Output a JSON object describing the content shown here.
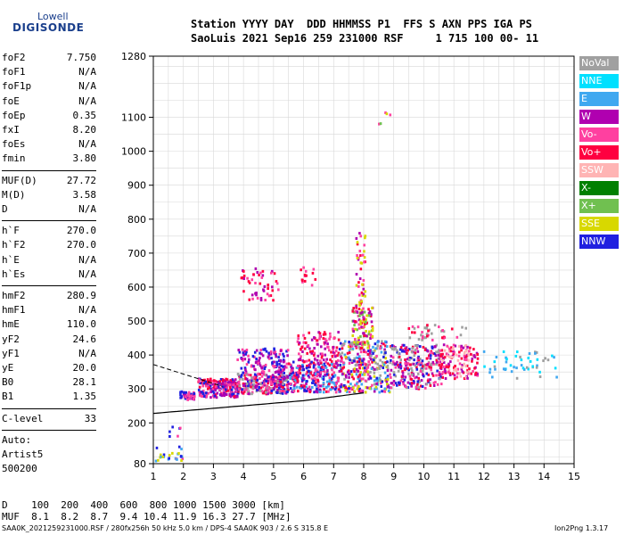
{
  "logo": {
    "line1": "Lowell",
    "line2": "DIGISONDE"
  },
  "header": {
    "line1": "Station YYYY DAY  DDD HHMMSS P1  FFS S AXN PPS IGA PS",
    "line2": "SaoLuis 2021 Sep16 259 231000 RSF     1 715 100 00- 11"
  },
  "params_group1": [
    {
      "k": "foF2",
      "v": "7.750"
    },
    {
      "k": "foF1",
      "v": "N/A"
    },
    {
      "k": "foF1p",
      "v": "N/A"
    },
    {
      "k": "foE",
      "v": "N/A"
    },
    {
      "k": "foEp",
      "v": "0.35"
    },
    {
      "k": "fxI",
      "v": "8.20"
    },
    {
      "k": "foEs",
      "v": "N/A"
    },
    {
      "k": "fmin",
      "v": "3.80"
    }
  ],
  "params_group2": [
    {
      "k": "MUF(D)",
      "v": "27.72"
    },
    {
      "k": "M(D)",
      "v": "3.58"
    },
    {
      "k": "D",
      "v": "N/A"
    }
  ],
  "params_group3": [
    {
      "k": "h`F",
      "v": "270.0"
    },
    {
      "k": "h`F2",
      "v": "270.0"
    },
    {
      "k": "h`E",
      "v": "N/A"
    },
    {
      "k": "h`Es",
      "v": "N/A"
    }
  ],
  "params_group4": [
    {
      "k": "hmF2",
      "v": "280.9"
    },
    {
      "k": "hmF1",
      "v": "N/A"
    },
    {
      "k": "hmE",
      "v": "110.0"
    },
    {
      "k": "yF2",
      "v": "24.6"
    },
    {
      "k": "yF1",
      "v": "N/A"
    },
    {
      "k": "yE",
      "v": "20.0"
    },
    {
      "k": "B0",
      "v": "28.1"
    },
    {
      "k": "B1",
      "v": "1.35"
    }
  ],
  "c_level": {
    "k": "C-level",
    "v": "33"
  },
  "auto": {
    "l1": "Auto:",
    "l2": "Artist5",
    "l3": "500200"
  },
  "legend": [
    {
      "label": "NoVal",
      "color": "#a0a0a0"
    },
    {
      "label": "NNE",
      "color": "#00e0ff"
    },
    {
      "label": "E",
      "color": "#40a8f0"
    },
    {
      "label": "W",
      "color": "#b000b0"
    },
    {
      "label": "Vo-",
      "color": "#ff40a0"
    },
    {
      "label": "Vo+",
      "color": "#ff0040"
    },
    {
      "label": "SSW",
      "color": "#ffb4b4"
    },
    {
      "label": "X-",
      "color": "#008000"
    },
    {
      "label": "X+",
      "color": "#70c050"
    },
    {
      "label": "SSE",
      "color": "#d8d800"
    },
    {
      "label": "NNW",
      "color": "#2020e0"
    }
  ],
  "bottom": {
    "d_line": "D    100  200  400  600  800 1000 1500 3000 [km]",
    "muf_line": "MUF  8.1  8.2  8.7  9.4 10.4 11.9 16.3 27.7 [MHz]"
  },
  "footer": {
    "left": "SAA0K_2021259231000.RSF / 280fx256h 50 kHz 5.0 km / DPS-4 SAA0K 903 / 2.6 S 315.8 E",
    "right": "Ion2Png 1.3.17"
  },
  "chart_data": {
    "type": "scatter",
    "xlim": [
      1,
      15
    ],
    "ylim": [
      80,
      1280
    ],
    "x_ticks": [
      1,
      2,
      3,
      4,
      5,
      6,
      7,
      8,
      9,
      10,
      11,
      12,
      13,
      14,
      15
    ],
    "y_ticks": [
      80,
      200,
      300,
      400,
      500,
      600,
      700,
      800,
      900,
      1000,
      1100,
      1280
    ],
    "grid": true,
    "legend_placement": "right",
    "trace": {
      "foF2": 7.75,
      "h_start": 270,
      "h_end": 310
    },
    "clusters": [
      {
        "x": [
          1.9,
          2.4
        ],
        "y": [
          268,
          292
        ],
        "n": 40,
        "colors": [
          "#2020e0",
          "#b000b0",
          "#ff40a0"
        ]
      },
      {
        "x": [
          2.5,
          3.8
        ],
        "y": [
          275,
          330
        ],
        "n": 220,
        "colors": [
          "#b000b0",
          "#2020e0",
          "#ff40a0",
          "#ff0040"
        ]
      },
      {
        "x": [
          3.8,
          5.5
        ],
        "y": [
          285,
          345
        ],
        "n": 280,
        "colors": [
          "#b000b0",
          "#ff40a0",
          "#ff0040",
          "#2020e0",
          "#a0a0a0"
        ]
      },
      {
        "x": [
          3.8,
          5.5
        ],
        "y": [
          345,
          420
        ],
        "n": 130,
        "colors": [
          "#b000b0",
          "#ff40a0",
          "#2020e0"
        ]
      },
      {
        "x": [
          5.5,
          7.2
        ],
        "y": [
          290,
          380
        ],
        "n": 280,
        "colors": [
          "#ff40a0",
          "#ff0040",
          "#b000b0",
          "#2020e0",
          "#40a8f0"
        ]
      },
      {
        "x": [
          5.8,
          7.2
        ],
        "y": [
          380,
          470
        ],
        "n": 100,
        "colors": [
          "#ff40a0",
          "#b000b0",
          "#ff0040"
        ]
      },
      {
        "x": [
          7.2,
          8.9
        ],
        "y": [
          290,
          440
        ],
        "n": 330,
        "colors": [
          "#ff40a0",
          "#ff0040",
          "#b000b0",
          "#2020e0",
          "#a0a0a0",
          "#d8d800",
          "#40a8f0"
        ]
      },
      {
        "x": [
          7.6,
          8.3
        ],
        "y": [
          430,
          540
        ],
        "n": 100,
        "colors": [
          "#ff0040",
          "#ff40a0",
          "#b000b0",
          "#d8d800",
          "#70c050"
        ]
      },
      {
        "x": [
          7.75,
          8.05
        ],
        "y": [
          540,
          760
        ],
        "n": 45,
        "colors": [
          "#ff0040",
          "#b000b0",
          "#ff40a0",
          "#d8d800"
        ]
      },
      {
        "x": [
          8.9,
          10.6
        ],
        "y": [
          300,
          430
        ],
        "n": 260,
        "colors": [
          "#ff40a0",
          "#ff0040",
          "#b000b0",
          "#a0a0a0",
          "#2020e0"
        ]
      },
      {
        "x": [
          10.5,
          11.8
        ],
        "y": [
          330,
          430
        ],
        "n": 150,
        "colors": [
          "#ff0040",
          "#ff40a0",
          "#b000b0",
          "#ffb4b4"
        ]
      },
      {
        "x": [
          9.5,
          11.4
        ],
        "y": [
          440,
          490
        ],
        "n": 40,
        "colors": [
          "#ff40a0",
          "#ff0040",
          "#a0a0a0"
        ]
      },
      {
        "x": [
          12.0,
          14.5
        ],
        "y": [
          330,
          410
        ],
        "n": 50,
        "colors": [
          "#00e0ff",
          "#40a8f0",
          "#a0a0a0"
        ]
      },
      {
        "x": [
          3.9,
          5.2
        ],
        "y": [
          560,
          660
        ],
        "n": 50,
        "colors": [
          "#b000b0",
          "#ff40a0",
          "#ff0040"
        ]
      },
      {
        "x": [
          5.9,
          6.4
        ],
        "y": [
          600,
          660
        ],
        "n": 14,
        "colors": [
          "#ff0040",
          "#ff40a0"
        ]
      },
      {
        "x": [
          8.5,
          8.9
        ],
        "y": [
          1080,
          1115
        ],
        "n": 5,
        "colors": [
          "#70c050",
          "#d8d800",
          "#ff40a0"
        ]
      },
      {
        "x": [
          1.0,
          2.2
        ],
        "y": [
          85,
          130
        ],
        "n": 25,
        "colors": [
          "#2020e0",
          "#40a8f0",
          "#d8d800",
          "#ff40a0"
        ]
      },
      {
        "x": [
          1.5,
          2.0
        ],
        "y": [
          160,
          190
        ],
        "n": 6,
        "colors": [
          "#2020e0",
          "#ff40a0"
        ]
      }
    ]
  }
}
